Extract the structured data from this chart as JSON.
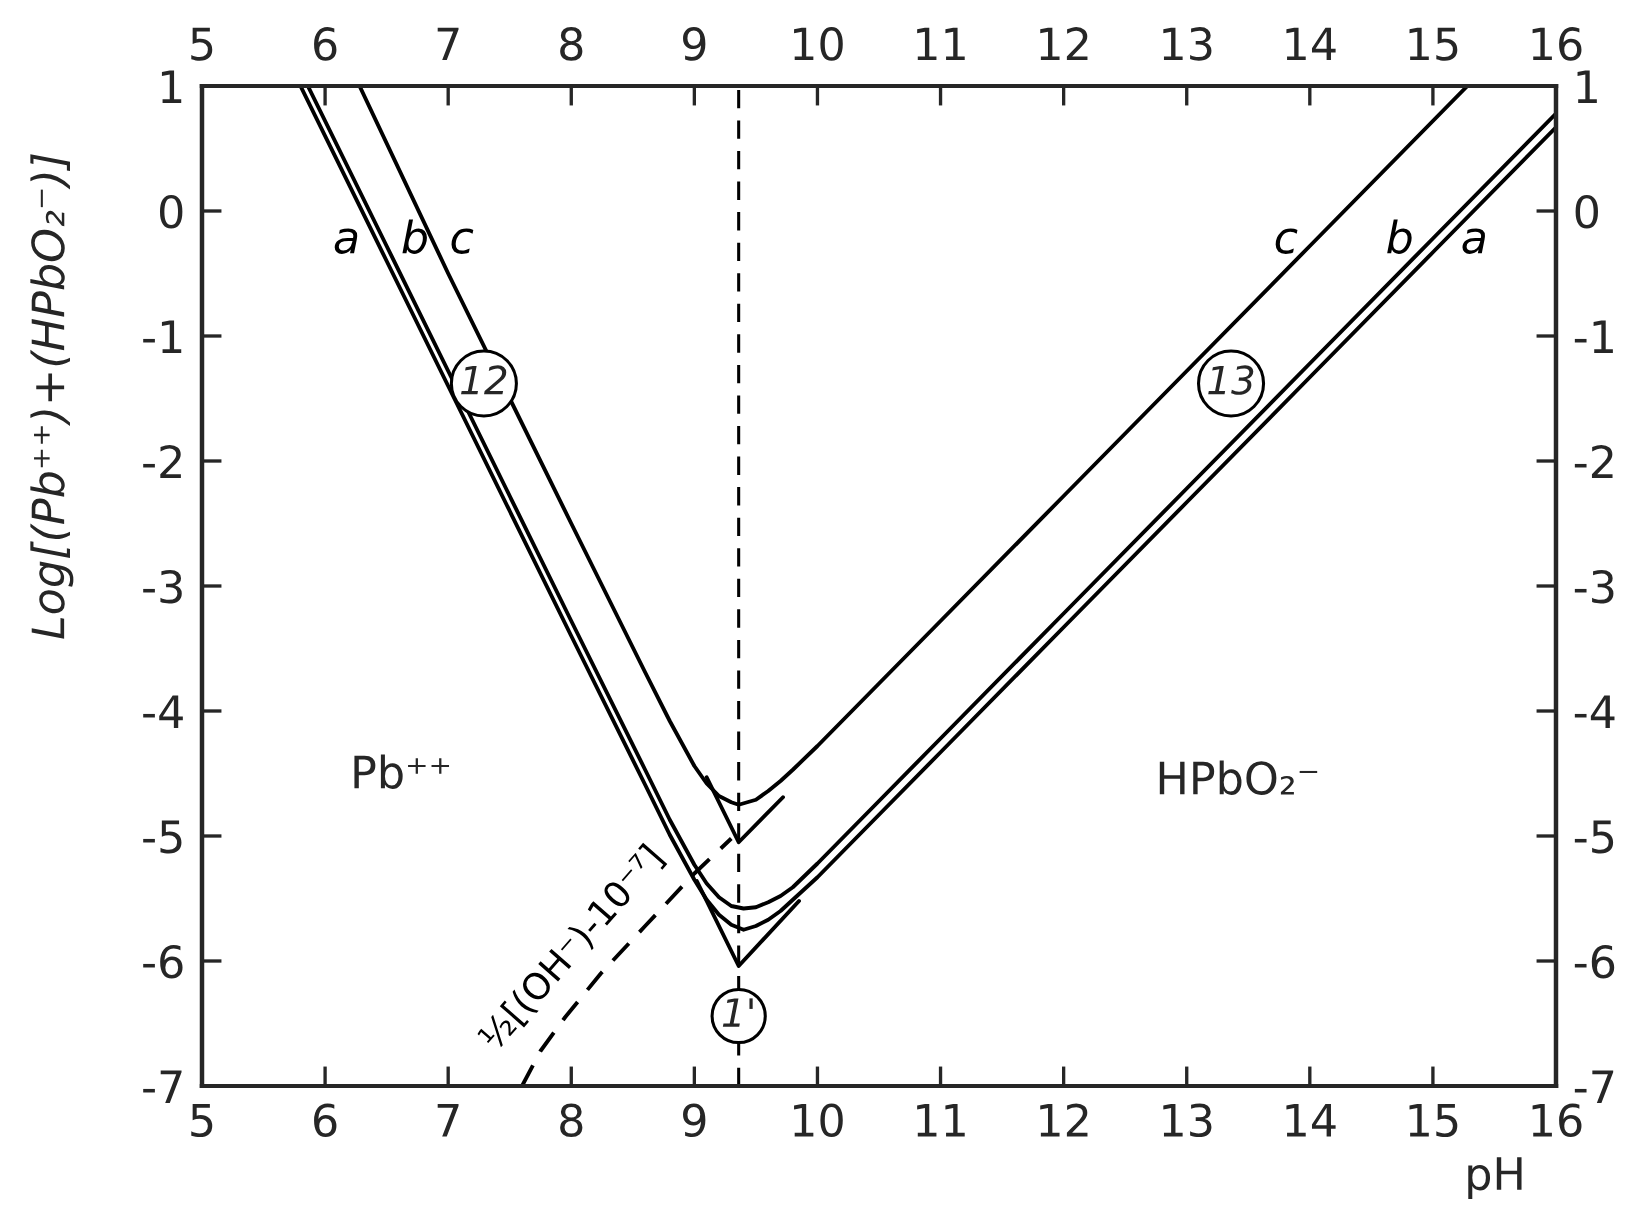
{
  "chart_data": {
    "type": "line",
    "xlabel": "pH",
    "ylabel": "Log[(Pb⁺⁺)+(HPbO₂⁻)]",
    "xlim": [
      5,
      16
    ],
    "ylim": [
      -7,
      1
    ],
    "xticks": [
      5,
      6,
      7,
      8,
      9,
      10,
      11,
      12,
      13,
      14,
      15,
      16
    ],
    "yticks": [
      -7,
      -6,
      -5,
      -4,
      -3,
      -2,
      -1,
      0,
      1
    ],
    "x2lim": [
      5,
      16
    ],
    "x2ticks": [
      5,
      6,
      7,
      8,
      9,
      10,
      11,
      12,
      13,
      14,
      15,
      16
    ],
    "y2lim": [
      -7,
      1
    ],
    "y2ticks": [
      -7,
      -6,
      -5,
      -4,
      -3,
      -2,
      -1,
      0,
      1
    ],
    "series": [
      {
        "name": "c",
        "color": "#000000",
        "x": [
          6.28,
          7.0,
          8.0,
          8.6,
          8.8,
          9.0,
          9.1,
          9.2,
          9.3,
          9.36,
          9.5,
          9.6,
          9.7,
          9.8,
          10.0,
          10.5,
          11.0,
          12.0,
          13.0,
          14.0,
          15.28
        ],
        "values": [
          1.0,
          -0.5,
          -2.5,
          -3.69,
          -4.08,
          -4.44,
          -4.58,
          -4.68,
          -4.73,
          -4.75,
          -4.71,
          -4.64,
          -4.56,
          -4.47,
          -4.28,
          -3.78,
          -3.28,
          -2.28,
          -1.28,
          -0.28,
          1.0
        ]
      },
      {
        "name": "b",
        "color": "#000000",
        "x": [
          5.86,
          6.5,
          7.0,
          7.5,
          8.0,
          8.6,
          8.8,
          9.0,
          9.1,
          9.2,
          9.3,
          9.4,
          9.5,
          9.6,
          9.7,
          9.8,
          10.0,
          10.5,
          11.0,
          12.0,
          13.0,
          14.0,
          15.0,
          16.0
        ],
        "values": [
          1.0,
          -0.28,
          -1.28,
          -2.28,
          -3.28,
          -4.47,
          -4.87,
          -5.23,
          -5.38,
          -5.49,
          -5.56,
          -5.58,
          -5.57,
          -5.53,
          -5.48,
          -5.41,
          -5.22,
          -4.72,
          -4.22,
          -3.22,
          -2.22,
          -1.22,
          -0.22,
          0.78
        ]
      },
      {
        "name": "a",
        "color": "#000000",
        "x": [
          5.8,
          6.5,
          7.0,
          7.5,
          8.0,
          8.6,
          8.8,
          9.0,
          9.1,
          9.2,
          9.3,
          9.4,
          9.5,
          9.6,
          9.7,
          9.8,
          10.0,
          10.5,
          11.0,
          12.0,
          13.0,
          14.0,
          15.0,
          16.0
        ],
        "values": [
          1.0,
          -0.4,
          -1.4,
          -2.4,
          -3.4,
          -4.59,
          -4.99,
          -5.35,
          -5.51,
          -5.63,
          -5.71,
          -5.75,
          -5.72,
          -5.67,
          -5.6,
          -5.51,
          -5.33,
          -4.83,
          -4.33,
          -3.33,
          -2.33,
          -1.33,
          -0.33,
          0.67
        ]
      },
      {
        "color": "#000000",
        "x": [
          9.1,
          9.36,
          9.72
        ],
        "values": [
          -4.53,
          -5.05,
          -4.69
        ]
      },
      {
        "color": "#000000",
        "x": [
          9.02,
          9.36,
          9.85
        ],
        "values": [
          -5.36,
          -6.04,
          -5.52
        ]
      },
      {
        "name": "½[(OH⁻)-10⁻⁷]",
        "color": "#000000",
        "line_style": "dashed",
        "x": [
          7.6,
          7.75,
          7.95,
          8.24,
          8.6,
          9.0,
          9.3
        ],
        "values": [
          -7.0,
          -6.72,
          -6.45,
          -6.1,
          -5.72,
          -5.3,
          -5.02
        ]
      }
    ],
    "ref_lines": [
      {
        "axis": "x",
        "value": 9.36,
        "line_style": "dashed"
      }
    ],
    "annotations": [
      {
        "text": "12",
        "x": 7.29,
        "y": -1.38
      },
      {
        "text": "13",
        "x": 13.36,
        "y": -1.38
      },
      {
        "text": "1'",
        "x": 9.36,
        "y": -6.44
      },
      "Pb⁺⁺",
      "HPbO₂⁻"
    ]
  }
}
